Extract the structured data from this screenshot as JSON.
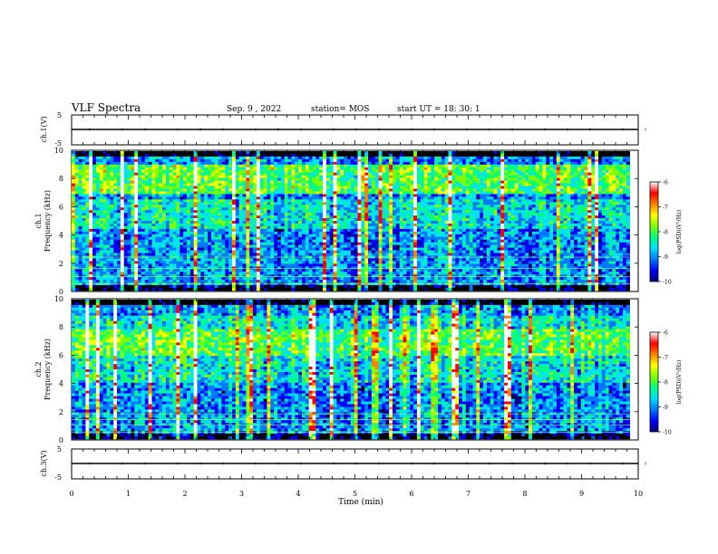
{
  "header": {
    "title": "VLF Spectra",
    "date": "Sep. 9 , 2022",
    "station": "station= MOS",
    "start": "start UT = 18: 30: 1"
  },
  "chart_data": [
    {
      "type": "line",
      "name": "ch1-waveform",
      "ylabel": "ch.1(V)",
      "ylim": [
        -5,
        5
      ],
      "yticks": [
        "5",
        "-5"
      ],
      "level": 0,
      "xlim": [
        0,
        10
      ]
    },
    {
      "type": "heatmap",
      "name": "ch1-spectrogram",
      "ylabel": "ch.1\nFrequency (kHz)",
      "ylabel_line1": "ch.1",
      "ylabel_line2": "Frequency (kHz)",
      "ylim": [
        0,
        10
      ],
      "yticks": [
        "0",
        "2",
        "4",
        "6",
        "8",
        "10"
      ],
      "xlim": [
        0,
        9.85
      ],
      "colorbar": {
        "label": "log(PSD)(V²/Hz)",
        "range": [
          -10,
          -6
        ],
        "ticks": [
          "-6",
          "-7",
          "-8",
          "-9",
          "-10"
        ]
      },
      "features": {
        "strong_band_khz": [
          7.0,
          9.0
        ],
        "mid_band_khz": [
          4.5,
          6.5
        ],
        "low_lines_khz": [
          0.5,
          1.0,
          1.6,
          2.4
        ],
        "peak_log_psd": -6.5
      }
    },
    {
      "type": "heatmap",
      "name": "ch2-spectrogram",
      "ylabel": "ch.2\nFrequency (kHz)",
      "ylabel_line1": "ch.2",
      "ylabel_line2": "Frequency (kHz)",
      "ylim": [
        0,
        10
      ],
      "yticks": [
        "0",
        "2",
        "4",
        "6",
        "8",
        "10"
      ],
      "xlim": [
        0,
        9.85
      ],
      "colorbar": {
        "label": "log(PSD)(V²/Hz)",
        "range": [
          -10,
          -6
        ],
        "ticks": [
          "-6",
          "-7",
          "-8",
          "-9",
          "-10"
        ]
      },
      "features": {
        "strong_band_khz": [
          6.0,
          7.8
        ],
        "mid_band_khz": [
          4.0,
          8.8
        ],
        "low_lines_khz": [
          0.5,
          1.0,
          1.4,
          1.8
        ],
        "peak_log_psd": -6.8
      }
    },
    {
      "type": "line",
      "name": "ch3-waveform",
      "ylabel": "ch.3(V)",
      "ylim": [
        -5,
        5
      ],
      "yticks": [
        "5",
        "-5"
      ],
      "level": 0,
      "xlim": [
        0,
        10
      ]
    }
  ],
  "xaxis": {
    "label": "Time (min)",
    "ticks": [
      "0",
      "1",
      "2",
      "3",
      "4",
      "5",
      "6",
      "7",
      "8",
      "9",
      "10"
    ],
    "range": [
      0,
      10
    ]
  },
  "colors": {
    "colormap": [
      "#00007a",
      "#0000ff",
      "#0078ff",
      "#00e0ff",
      "#00ff80",
      "#80ff00",
      "#ffff00",
      "#ff8000",
      "#ff0000",
      "#ffffff"
    ],
    "background": "#000000"
  }
}
